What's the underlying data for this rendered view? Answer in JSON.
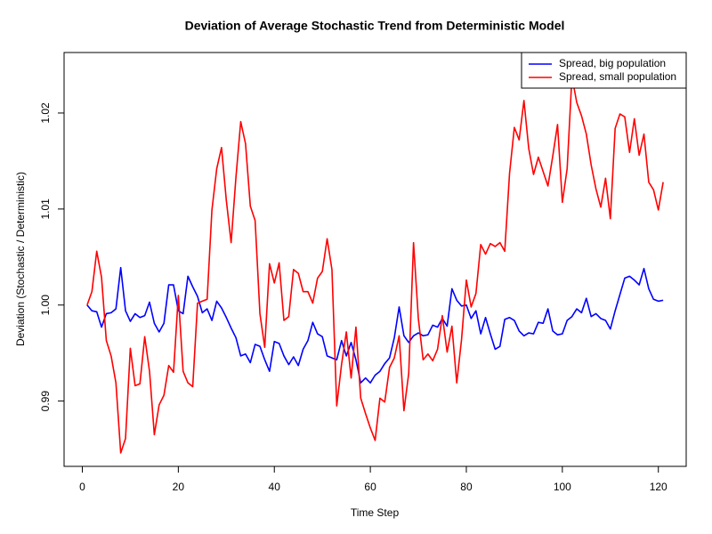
{
  "chart_data": {
    "type": "line",
    "title": "Deviation of Average Stochastic Trend from Deterministic Model",
    "x_label": "Time Step",
    "y_label": "Deviation (Stochastic / Deterministic)",
    "x": [
      1,
      2,
      3,
      4,
      5,
      6,
      7,
      8,
      9,
      10,
      11,
      12,
      13,
      14,
      15,
      16,
      17,
      18,
      19,
      20,
      21,
      22,
      23,
      24,
      25,
      26,
      27,
      28,
      29,
      30,
      31,
      32,
      33,
      34,
      35,
      36,
      37,
      38,
      39,
      40,
      41,
      42,
      43,
      44,
      45,
      46,
      47,
      48,
      49,
      50,
      51,
      52,
      53,
      54,
      55,
      56,
      57,
      58,
      59,
      60,
      61,
      62,
      63,
      64,
      65,
      66,
      67,
      68,
      69,
      70,
      71,
      72,
      73,
      74,
      75,
      76,
      77,
      78,
      79,
      80,
      81,
      82,
      83,
      84,
      85,
      86,
      87,
      88,
      89,
      90,
      91,
      92,
      93,
      94,
      95,
      96,
      97,
      98,
      99,
      100,
      101,
      102,
      103,
      104,
      105,
      106,
      107,
      108,
      109,
      110,
      111,
      112,
      113,
      114,
      115,
      116,
      117,
      118,
      119,
      120,
      121
    ],
    "series": [
      {
        "name": "Spread, big population",
        "color": "#0000ff",
        "values": [
          1.0,
          0.9994,
          0.9993,
          0.9977,
          0.9991,
          0.9992,
          0.9996,
          1.0039,
          0.9994,
          0.9983,
          0.9991,
          0.9987,
          0.9989,
          1.0003,
          0.9981,
          0.9972,
          0.9981,
          1.0021,
          1.0021,
          0.9994,
          0.9991,
          1.003,
          1.0019,
          1.0009,
          0.9992,
          0.9996,
          0.9984,
          1.0004,
          0.9997,
          0.9987,
          0.9976,
          0.9966,
          0.9947,
          0.9949,
          0.994,
          0.9959,
          0.9957,
          0.9943,
          0.9931,
          0.9962,
          0.996,
          0.9947,
          0.9938,
          0.9946,
          0.9937,
          0.9954,
          0.9963,
          0.9982,
          0.997,
          0.9967,
          0.9947,
          0.9945,
          0.9943,
          0.9963,
          0.9947,
          0.9961,
          0.9943,
          0.9919,
          0.9924,
          0.9919,
          0.9927,
          0.9931,
          0.9939,
          0.9945,
          0.9966,
          0.9998,
          0.9968,
          0.9961,
          0.9968,
          0.9971,
          0.9968,
          0.9969,
          0.9979,
          0.9977,
          0.9986,
          0.9978,
          1.0017,
          1.0005,
          0.9999,
          1.0,
          0.9986,
          0.9994,
          0.997,
          0.9987,
          0.997,
          0.9954,
          0.9957,
          0.9985,
          0.9987,
          0.9984,
          0.9973,
          0.9968,
          0.9971,
          0.997,
          0.9982,
          0.9981,
          0.9996,
          0.9973,
          0.9969,
          0.997,
          0.9984,
          0.9988,
          0.9996,
          0.9992,
          1.0007,
          0.9988,
          0.9991,
          0.9986,
          0.9984,
          0.9975,
          0.9994,
          1.0011,
          1.0028,
          1.003,
          1.0026,
          1.0021,
          1.0038,
          1.0017,
          1.0006,
          1.0004,
          1.0005
        ]
      },
      {
        "name": "Spread, small population",
        "color": "#ff0000",
        "values": [
          1.0,
          1.0014,
          1.0056,
          1.0029,
          0.9963,
          0.9947,
          0.9919,
          0.9846,
          0.9861,
          0.9955,
          0.9916,
          0.9918,
          0.9967,
          0.9931,
          0.9865,
          0.9896,
          0.9906,
          0.9937,
          0.993,
          1.001,
          0.9931,
          0.9919,
          0.9915,
          1.0002,
          1.0004,
          1.0006,
          1.0099,
          1.0142,
          1.0164,
          1.0109,
          1.0065,
          1.0133,
          1.0191,
          1.0168,
          1.0103,
          1.0088,
          0.9991,
          0.9956,
          1.0043,
          1.0023,
          1.0044,
          0.9984,
          0.9988,
          1.0037,
          1.0033,
          1.0014,
          1.0014,
          1.0002,
          1.0028,
          1.0035,
          1.0069,
          1.0037,
          0.9895,
          0.9938,
          0.9972,
          0.9924,
          0.9977,
          0.9903,
          0.9887,
          0.9872,
          0.9859,
          0.9903,
          0.9899,
          0.9935,
          0.9945,
          0.9968,
          0.989,
          0.9929,
          1.0065,
          0.9986,
          0.9943,
          0.9949,
          0.9942,
          0.9954,
          0.9989,
          0.9951,
          0.9978,
          0.9919,
          0.9964,
          1.0026,
          0.9998,
          1.0012,
          1.0063,
          1.0053,
          1.0064,
          1.0061,
          1.0065,
          1.0056,
          1.0137,
          1.0185,
          1.0172,
          1.0213,
          1.0163,
          1.0136,
          1.0154,
          1.0139,
          1.0124,
          1.0155,
          1.0188,
          1.0107,
          1.0142,
          1.0238,
          1.0211,
          1.0197,
          1.0178,
          1.0146,
          1.0121,
          1.0102,
          1.0132,
          1.009,
          1.0184,
          1.0199,
          1.0196,
          1.0159,
          1.0194,
          1.0156,
          1.0178,
          1.0128,
          1.012,
          1.0099,
          1.0128
        ]
      }
    ],
    "xlim": [
      -3.8,
      125.8
    ],
    "ylim": [
      0.9832,
      1.0263
    ],
    "xticks": [
      0,
      20,
      40,
      60,
      80,
      100,
      120
    ],
    "yticks": [
      0.99,
      {
        "value": 1,
        "label": "1.00"
      },
      1.01,
      1.02
    ],
    "legend": "topright",
    "grid": false
  }
}
